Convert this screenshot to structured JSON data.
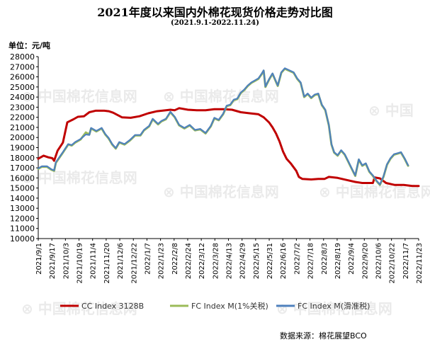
{
  "chart_data": {
    "type": "line",
    "title": "2021年度以来国内外棉花现货价格走势对比图",
    "subtitle": "(2021.9.1-2022.11.24)",
    "unit_label": "单位：元/吨",
    "source": "数据来源：棉花展望BCO",
    "watermark": "中国棉花信息网 www.cottonchina.org.cn",
    "ylim": [
      10000,
      28000
    ],
    "ytick_step": 1000,
    "yticks": [
      "28000",
      "27000",
      "26000",
      "25000",
      "24000",
      "23000",
      "22000",
      "21000",
      "20000",
      "19000",
      "18000",
      "17000",
      "16000",
      "15000",
      "14000",
      "13000",
      "12000",
      "11000",
      "10000"
    ],
    "xticks": [
      "2021/9/1",
      "2021/9/17",
      "2021/10/3",
      "2021/10/19",
      "2021/11/4",
      "2021/11/20",
      "2021/12/6",
      "2021/12/22",
      "2022/1/7",
      "2022/1/23",
      "2022/2/8",
      "2022/2/24",
      "2022/3/12",
      "2022/3/28",
      "2022/4/13",
      "2022/4/29",
      "2022/5/15",
      "2022/5/31",
      "2022/6/16",
      "2022/7/2",
      "2022/7/18",
      "2022/8/3",
      "2022/8/19",
      "2022/9/4",
      "2022/9/20",
      "2022/10/6",
      "2022/10/22",
      "2022/11/7",
      "2022/11/23"
    ],
    "series": [
      {
        "name": "CC Index 3128B",
        "color": "#c00000",
        "points": [
          [
            0,
            17900
          ],
          [
            6,
            18200
          ],
          [
            11,
            18050
          ],
          [
            16,
            17950
          ],
          [
            18,
            17700
          ],
          [
            22,
            18700
          ],
          [
            28,
            19500
          ],
          [
            33,
            21500
          ],
          [
            40,
            21800
          ],
          [
            45,
            22050
          ],
          [
            52,
            22100
          ],
          [
            58,
            22500
          ],
          [
            65,
            22650
          ],
          [
            75,
            22650
          ],
          [
            80,
            22600
          ],
          [
            85,
            22450
          ],
          [
            95,
            22000
          ],
          [
            105,
            21950
          ],
          [
            115,
            22100
          ],
          [
            125,
            22400
          ],
          [
            135,
            22600
          ],
          [
            145,
            22700
          ],
          [
            150,
            22750
          ],
          [
            155,
            22700
          ],
          [
            160,
            22900
          ],
          [
            170,
            22750
          ],
          [
            180,
            22700
          ],
          [
            190,
            22700
          ],
          [
            200,
            22800
          ],
          [
            210,
            22800
          ],
          [
            220,
            22750
          ],
          [
            230,
            22500
          ],
          [
            240,
            22400
          ],
          [
            250,
            22300
          ],
          [
            256,
            22000
          ],
          [
            262,
            21500
          ],
          [
            266,
            21000
          ],
          [
            270,
            20400
          ],
          [
            274,
            19600
          ],
          [
            278,
            18600
          ],
          [
            282,
            17900
          ],
          [
            287,
            17400
          ],
          [
            290,
            17050
          ],
          [
            293,
            16700
          ],
          [
            296,
            16100
          ],
          [
            300,
            15900
          ],
          [
            310,
            15850
          ],
          [
            318,
            15900
          ],
          [
            325,
            15900
          ],
          [
            330,
            16100
          ],
          [
            340,
            16000
          ],
          [
            350,
            15800
          ],
          [
            360,
            15600
          ],
          [
            368,
            15500
          ],
          [
            375,
            15500
          ],
          [
            380,
            15500
          ],
          [
            382,
            16050
          ],
          [
            388,
            15950
          ],
          [
            395,
            15500
          ],
          [
            405,
            15300
          ],
          [
            415,
            15300
          ],
          [
            425,
            15200
          ],
          [
            432,
            15200
          ]
        ]
      },
      {
        "name": "FC Index M(1%关税)",
        "color": "#9bbb59",
        "points": [
          [
            0,
            16900
          ],
          [
            4,
            17100
          ],
          [
            10,
            17100
          ],
          [
            15,
            16800
          ],
          [
            18,
            16700
          ],
          [
            20,
            17500
          ],
          [
            28,
            18500
          ],
          [
            34,
            19300
          ],
          [
            38,
            19200
          ],
          [
            42,
            19500
          ],
          [
            48,
            19800
          ],
          [
            54,
            20500
          ],
          [
            58,
            20300
          ],
          [
            60,
            20900
          ],
          [
            66,
            20600
          ],
          [
            72,
            20900
          ],
          [
            76,
            20300
          ],
          [
            80,
            19900
          ],
          [
            84,
            19300
          ],
          [
            88,
            18900
          ],
          [
            92,
            19500
          ],
          [
            98,
            19300
          ],
          [
            104,
            19700
          ],
          [
            110,
            20200
          ],
          [
            116,
            20200
          ],
          [
            120,
            20700
          ],
          [
            126,
            21100
          ],
          [
            130,
            21800
          ],
          [
            136,
            21300
          ],
          [
            140,
            21600
          ],
          [
            145,
            21800
          ],
          [
            150,
            22500
          ],
          [
            155,
            22000
          ],
          [
            160,
            21200
          ],
          [
            166,
            20900
          ],
          [
            172,
            21200
          ],
          [
            178,
            20700
          ],
          [
            184,
            20800
          ],
          [
            190,
            20400
          ],
          [
            196,
            21100
          ],
          [
            200,
            21900
          ],
          [
            205,
            21700
          ],
          [
            210,
            22300
          ],
          [
            214,
            23100
          ],
          [
            218,
            23200
          ],
          [
            222,
            23700
          ],
          [
            226,
            23800
          ],
          [
            230,
            24400
          ],
          [
            234,
            24700
          ],
          [
            238,
            25100
          ],
          [
            242,
            25400
          ],
          [
            246,
            25600
          ],
          [
            250,
            25800
          ],
          [
            254,
            26300
          ],
          [
            256,
            26600
          ],
          [
            258,
            25000
          ],
          [
            262,
            25700
          ],
          [
            266,
            26300
          ],
          [
            270,
            25500
          ],
          [
            272,
            25100
          ],
          [
            276,
            26400
          ],
          [
            280,
            26800
          ],
          [
            285,
            26600
          ],
          [
            290,
            26400
          ],
          [
            294,
            25800
          ],
          [
            298,
            25400
          ],
          [
            302,
            24000
          ],
          [
            306,
            24300
          ],
          [
            310,
            23900
          ],
          [
            314,
            24200
          ],
          [
            318,
            24300
          ],
          [
            322,
            23200
          ],
          [
            326,
            22700
          ],
          [
            330,
            21200
          ],
          [
            333,
            19300
          ],
          [
            336,
            18500
          ],
          [
            340,
            18200
          ],
          [
            344,
            18700
          ],
          [
            348,
            18300
          ],
          [
            352,
            17600
          ],
          [
            356,
            16900
          ],
          [
            360,
            16200
          ],
          [
            364,
            17800
          ],
          [
            368,
            17200
          ],
          [
            372,
            17400
          ],
          [
            376,
            16600
          ],
          [
            380,
            16200
          ],
          [
            384,
            15700
          ],
          [
            388,
            15300
          ],
          [
            392,
            16100
          ],
          [
            396,
            17300
          ],
          [
            400,
            17900
          ],
          [
            404,
            18300
          ],
          [
            408,
            18400
          ],
          [
            412,
            18500
          ],
          [
            416,
            17900
          ],
          [
            420,
            17200
          ]
        ]
      },
      {
        "name": "FC Index M(滑准税)",
        "color": "#4f81bd",
        "points": [
          [
            0,
            16950
          ],
          [
            4,
            17150
          ],
          [
            10,
            17150
          ],
          [
            15,
            16850
          ],
          [
            18,
            16750
          ],
          [
            20,
            17550
          ],
          [
            28,
            18550
          ],
          [
            34,
            19350
          ],
          [
            38,
            19250
          ],
          [
            42,
            19550
          ],
          [
            48,
            19850
          ],
          [
            54,
            20300
          ],
          [
            58,
            20250
          ],
          [
            60,
            20950
          ],
          [
            66,
            20650
          ],
          [
            72,
            20950
          ],
          [
            76,
            20350
          ],
          [
            80,
            19950
          ],
          [
            84,
            19350
          ],
          [
            88,
            18950
          ],
          [
            92,
            19550
          ],
          [
            98,
            19350
          ],
          [
            104,
            19750
          ],
          [
            110,
            20250
          ],
          [
            116,
            20250
          ],
          [
            120,
            20750
          ],
          [
            126,
            21150
          ],
          [
            130,
            21850
          ],
          [
            136,
            21350
          ],
          [
            140,
            21650
          ],
          [
            145,
            21850
          ],
          [
            150,
            22550
          ],
          [
            155,
            22050
          ],
          [
            160,
            21250
          ],
          [
            166,
            20950
          ],
          [
            172,
            21250
          ],
          [
            178,
            20750
          ],
          [
            184,
            20850
          ],
          [
            190,
            20450
          ],
          [
            196,
            21150
          ],
          [
            200,
            21950
          ],
          [
            205,
            21750
          ],
          [
            210,
            22350
          ],
          [
            214,
            23150
          ],
          [
            218,
            23250
          ],
          [
            222,
            23750
          ],
          [
            226,
            23850
          ],
          [
            230,
            24450
          ],
          [
            234,
            24750
          ],
          [
            238,
            25150
          ],
          [
            242,
            25450
          ],
          [
            246,
            25650
          ],
          [
            250,
            25850
          ],
          [
            254,
            26350
          ],
          [
            256,
            26650
          ],
          [
            258,
            25050
          ],
          [
            262,
            25750
          ],
          [
            266,
            26350
          ],
          [
            270,
            25550
          ],
          [
            272,
            25150
          ],
          [
            276,
            26450
          ],
          [
            280,
            26850
          ],
          [
            285,
            26650
          ],
          [
            290,
            26450
          ],
          [
            294,
            25850
          ],
          [
            298,
            25450
          ],
          [
            302,
            24050
          ],
          [
            306,
            24350
          ],
          [
            310,
            23950
          ],
          [
            314,
            24250
          ],
          [
            318,
            24350
          ],
          [
            322,
            23250
          ],
          [
            326,
            22750
          ],
          [
            330,
            21250
          ],
          [
            333,
            19350
          ],
          [
            336,
            18550
          ],
          [
            340,
            18250
          ],
          [
            344,
            18750
          ],
          [
            348,
            18350
          ],
          [
            352,
            17650
          ],
          [
            356,
            16950
          ],
          [
            360,
            16250
          ],
          [
            364,
            17850
          ],
          [
            368,
            17250
          ],
          [
            372,
            17450
          ],
          [
            376,
            16650
          ],
          [
            380,
            16250
          ],
          [
            384,
            15750
          ],
          [
            388,
            15350
          ],
          [
            392,
            16150
          ],
          [
            396,
            17350
          ],
          [
            400,
            17950
          ],
          [
            404,
            18350
          ],
          [
            408,
            18450
          ],
          [
            412,
            18550
          ],
          [
            416,
            17950
          ],
          [
            420,
            17250
          ]
        ]
      }
    ],
    "legend_placement": "bottom",
    "grid": false
  }
}
